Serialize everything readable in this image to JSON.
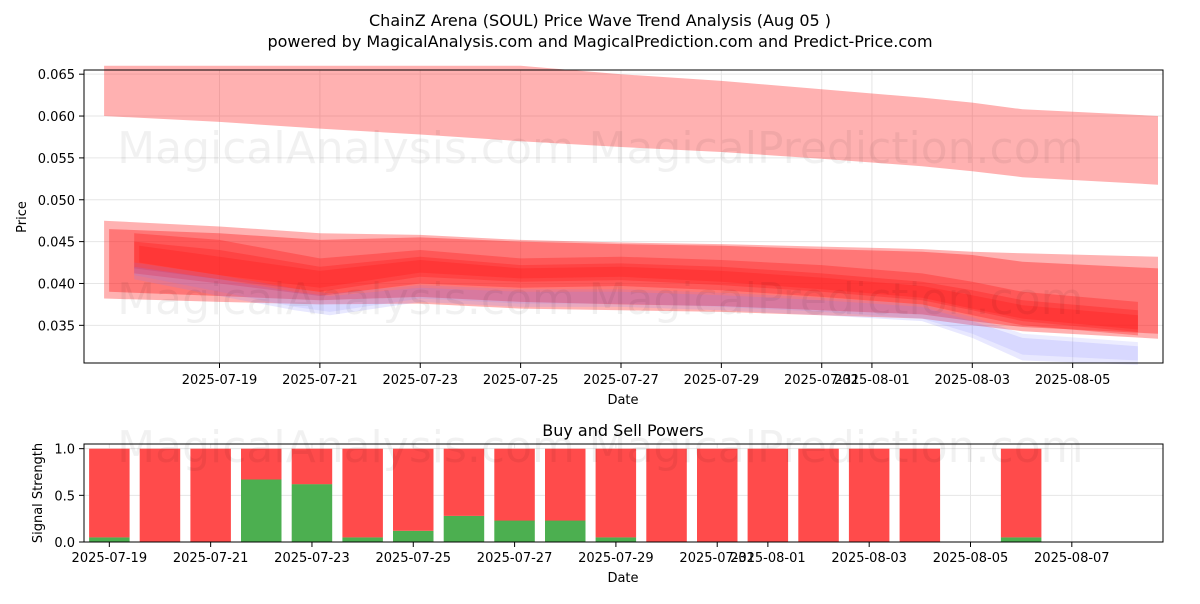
{
  "header": {
    "title": "ChainZ Arena (SOUL) Price Wave Trend Analysis (Aug 05 )",
    "subtitle": "powered by MagicalAnalysis.com and MagicalPrediction.com and Predict-Price.com"
  },
  "watermarks": [
    "MagicalAnalysis.com",
    "MagicalPrediction.com"
  ],
  "colors": {
    "band": "#ff2020",
    "band_soft": "#ff6b6b",
    "blue_band": "#8080ff",
    "buy": "#4caf50",
    "sell": "#ff4b4b",
    "grid": "#e6e6e6"
  },
  "chart_data": [
    {
      "type": "area",
      "title": "",
      "xlabel": "Date",
      "ylabel": "Price",
      "x_start": "2025-07-17",
      "dates": [
        "2025-07-17",
        "2025-07-18",
        "2025-07-19",
        "2025-07-20",
        "2025-07-21",
        "2025-07-22",
        "2025-07-23",
        "2025-07-24",
        "2025-07-25",
        "2025-07-26",
        "2025-07-27",
        "2025-07-28",
        "2025-07-29",
        "2025-07-30",
        "2025-07-31",
        "2025-08-01",
        "2025-08-02",
        "2025-08-03",
        "2025-08-04",
        "2025-08-05",
        "2025-08-06"
      ],
      "xlim_days": [
        -0.7,
        20.8
      ],
      "ylim": [
        0.0305,
        0.0655
      ],
      "xticks": [
        {
          "day": 2,
          "label": "2025-07-19"
        },
        {
          "day": 4,
          "label": "2025-07-21"
        },
        {
          "day": 6,
          "label": "2025-07-23"
        },
        {
          "day": 8,
          "label": "2025-07-25"
        },
        {
          "day": 10,
          "label": "2025-07-27"
        },
        {
          "day": 12,
          "label": "2025-07-29"
        },
        {
          "day": 14,
          "label": "2025-07-31"
        },
        {
          "day": 15,
          "label": "2025-08-01"
        },
        {
          "day": 17,
          "label": "2025-08-03"
        },
        {
          "day": 19,
          "label": "2025-08-05"
        }
      ],
      "yticks": [
        {
          "value": 0.035,
          "label": "0.035"
        },
        {
          "value": 0.04,
          "label": "0.040"
        },
        {
          "value": 0.045,
          "label": "0.045"
        },
        {
          "value": 0.05,
          "label": "0.050"
        },
        {
          "value": 0.055,
          "label": "0.055"
        },
        {
          "value": 0.06,
          "label": "0.060"
        },
        {
          "value": 0.065,
          "label": "0.065"
        }
      ],
      "grid": true,
      "series": [
        {
          "name": "upper-wave-band",
          "x": [
            -0.3,
            2,
            4,
            6,
            8,
            10,
            12,
            14,
            16,
            17,
            18,
            20.7
          ],
          "low": [
            0.06,
            0.0593,
            0.0585,
            0.0578,
            0.057,
            0.0563,
            0.0557,
            0.0549,
            0.054,
            0.0534,
            0.0527,
            0.0518
          ],
          "high": [
            0.066,
            0.066,
            0.066,
            0.066,
            0.066,
            0.065,
            0.0642,
            0.0632,
            0.0622,
            0.0616,
            0.0608,
            0.06
          ],
          "opacity": 0.35,
          "color": "#ff2020"
        },
        {
          "name": "main-wave-band-wide",
          "x": [
            -0.3,
            2,
            4,
            6,
            8,
            10,
            12,
            14,
            16,
            17,
            18,
            20.7
          ],
          "low": [
            0.0382,
            0.0378,
            0.0375,
            0.0376,
            0.037,
            0.0368,
            0.0366,
            0.0362,
            0.0358,
            0.035,
            0.0343,
            0.0334
          ],
          "high": [
            0.0475,
            0.0468,
            0.046,
            0.0458,
            0.0452,
            0.0449,
            0.0447,
            0.0444,
            0.0441,
            0.0438,
            0.0436,
            0.0432
          ],
          "opacity": 0.35,
          "color": "#ff2020"
        },
        {
          "name": "main-wave-band-inner",
          "x": [
            -0.2,
            2,
            4,
            6,
            8,
            10,
            12,
            14,
            16,
            17,
            18,
            20.7
          ],
          "low": [
            0.039,
            0.0385,
            0.038,
            0.0384,
            0.0378,
            0.0375,
            0.0373,
            0.0368,
            0.0363,
            0.0355,
            0.0348,
            0.034
          ],
          "high": [
            0.0465,
            0.046,
            0.0452,
            0.0455,
            0.045,
            0.0447,
            0.0445,
            0.0441,
            0.0438,
            0.0434,
            0.0426,
            0.0418
          ],
          "opacity": 0.4,
          "color": "#ff2020"
        },
        {
          "name": "dense-band-1",
          "x": [
            0.3,
            2,
            4,
            6,
            8,
            10,
            12,
            14,
            16,
            17,
            18,
            20.3
          ],
          "low": [
            0.0412,
            0.04,
            0.0385,
            0.04,
            0.0395,
            0.0397,
            0.0392,
            0.0384,
            0.0375,
            0.0362,
            0.035,
            0.0338
          ],
          "high": [
            0.046,
            0.0452,
            0.043,
            0.044,
            0.043,
            0.0432,
            0.0428,
            0.0422,
            0.0412,
            0.0402,
            0.039,
            0.0378
          ],
          "opacity": 0.35,
          "color": "#ff2020"
        },
        {
          "name": "dense-band-2",
          "x": [
            0.3,
            2,
            4,
            6,
            8,
            10,
            12,
            14,
            16,
            17,
            18,
            20.3
          ],
          "low": [
            0.0418,
            0.0405,
            0.039,
            0.0408,
            0.0402,
            0.0404,
            0.0398,
            0.039,
            0.038,
            0.0368,
            0.0355,
            0.0342
          ],
          "high": [
            0.045,
            0.044,
            0.042,
            0.0432,
            0.0422,
            0.0424,
            0.042,
            0.0412,
            0.0402,
            0.0392,
            0.038,
            0.0368
          ],
          "opacity": 0.35,
          "color": "#ff2020"
        },
        {
          "name": "dense-band-3",
          "x": [
            0.4,
            2,
            4,
            6,
            8,
            10,
            12,
            14,
            16,
            17,
            18,
            20.3
          ],
          "low": [
            0.0425,
            0.041,
            0.0395,
            0.0413,
            0.0406,
            0.0408,
            0.0402,
            0.0393,
            0.0383,
            0.037,
            0.0358,
            0.0345
          ],
          "high": [
            0.0445,
            0.0432,
            0.0415,
            0.0428,
            0.0418,
            0.042,
            0.0415,
            0.0407,
            0.0397,
            0.0386,
            0.0374,
            0.0362
          ],
          "opacity": 0.35,
          "color": "#ff2020"
        },
        {
          "name": "blue-lower-band-1",
          "x": [
            0.3,
            2,
            3.5,
            4.2,
            6,
            8,
            10,
            12,
            14,
            16,
            17,
            18,
            20.3
          ],
          "low": [
            0.0405,
            0.0385,
            0.0368,
            0.0362,
            0.0378,
            0.0372,
            0.0372,
            0.0368,
            0.0362,
            0.0355,
            0.0335,
            0.0308,
            0.0303
          ],
          "high": [
            0.042,
            0.0405,
            0.039,
            0.0385,
            0.0395,
            0.039,
            0.039,
            0.0386,
            0.038,
            0.0372,
            0.0355,
            0.0335,
            0.0325
          ],
          "opacity": 0.18,
          "color": "#8080ff"
        },
        {
          "name": "blue-lower-band-2",
          "x": [
            0.3,
            2,
            3.5,
            4.2,
            6,
            8,
            10,
            12,
            14,
            16,
            17,
            18,
            20.3
          ],
          "low": [
            0.041,
            0.039,
            0.0372,
            0.0366,
            0.0382,
            0.0376,
            0.0376,
            0.0372,
            0.0366,
            0.0358,
            0.034,
            0.0315,
            0.0308
          ],
          "high": [
            0.0425,
            0.041,
            0.0394,
            0.0388,
            0.0398,
            0.0393,
            0.0393,
            0.0389,
            0.0383,
            0.0375,
            0.036,
            0.034,
            0.033
          ],
          "opacity": 0.15,
          "color": "#8080ff"
        }
      ]
    },
    {
      "type": "bar",
      "title": "Buy and Sell Powers",
      "xlabel": "Date",
      "ylabel": "Signal Strength",
      "stacked": true,
      "xlim_days": [
        -0.5,
        20.8
      ],
      "ylim": [
        0,
        1.05
      ],
      "xticks": [
        {
          "day": 0,
          "label": "2025-07-19"
        },
        {
          "day": 2,
          "label": "2025-07-21"
        },
        {
          "day": 4,
          "label": "2025-07-23"
        },
        {
          "day": 6,
          "label": "2025-07-25"
        },
        {
          "day": 8,
          "label": "2025-07-27"
        },
        {
          "day": 10,
          "label": "2025-07-29"
        },
        {
          "day": 12,
          "label": "2025-07-31"
        },
        {
          "day": 13,
          "label": "2025-08-01"
        },
        {
          "day": 15,
          "label": "2025-08-03"
        },
        {
          "day": 17,
          "label": "2025-08-05"
        },
        {
          "day": 19,
          "label": "2025-08-07"
        }
      ],
      "yticks": [
        {
          "value": 0.0,
          "label": "0.0"
        },
        {
          "value": 0.5,
          "label": "0.5"
        },
        {
          "value": 1.0,
          "label": "1.0"
        }
      ],
      "grid": true,
      "bar_days": [
        0,
        1,
        2,
        3,
        4,
        5,
        6,
        7,
        8,
        9,
        10,
        11,
        12,
        13,
        14,
        15,
        16,
        18
      ],
      "series": [
        {
          "name": "Buy",
          "color": "#4caf50",
          "values": [
            0.05,
            0.0,
            0.0,
            0.67,
            0.62,
            0.05,
            0.12,
            0.28,
            0.23,
            0.23,
            0.05,
            0.0,
            0.0,
            0.0,
            0.0,
            0.0,
            0.0,
            0.05
          ]
        },
        {
          "name": "Sell",
          "color": "#ff4b4b",
          "values": [
            0.95,
            1.0,
            1.0,
            0.33,
            0.38,
            0.95,
            0.88,
            0.72,
            0.77,
            0.77,
            0.95,
            1.0,
            1.0,
            1.0,
            1.0,
            1.0,
            1.0,
            0.95
          ]
        }
      ]
    }
  ]
}
